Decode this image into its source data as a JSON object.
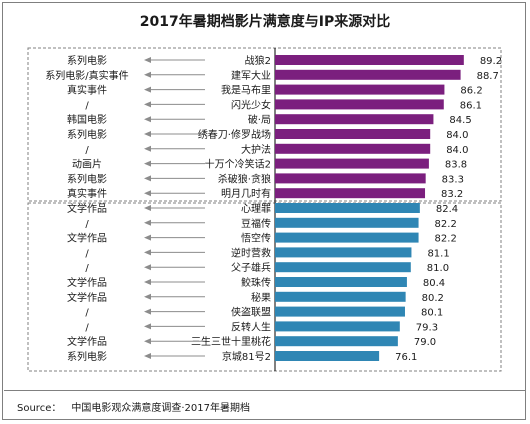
{
  "chart_data": {
    "type": "bar",
    "title": "2017年暑期档影片满意度与IP来源对比",
    "categories": [
      "战狼2",
      "建军大业",
      "我是马布里",
      "闪光少女",
      "破·局",
      "绣春刀·修罗战场",
      "大护法",
      "十万个冷笑话2",
      "杀破狼·贪狼",
      "明月几时有",
      "心理罪",
      "豆福传",
      "悟空传",
      "逆时营救",
      "父子雄兵",
      "鲛珠传",
      "秘果",
      "侠盗联盟",
      "反转人生",
      "三生三世十里桃花",
      "京城81号2"
    ],
    "values": [
      89.2,
      88.7,
      86.2,
      86.1,
      84.5,
      84.0,
      84.0,
      83.8,
      83.3,
      83.2,
      82.4,
      82.2,
      82.2,
      81.1,
      81.0,
      80.4,
      80.2,
      80.1,
      79.3,
      79.0,
      76.1
    ],
    "value_labels": [
      "89.2",
      "88.7",
      "86.2",
      "86.1",
      "84.5",
      "84.0",
      "84.0",
      "83.8",
      "83.3",
      "83.2",
      "82.4",
      "82.2",
      "82.2",
      "81.1",
      "81.0",
      "80.4",
      "80.2",
      "80.1",
      "79.3",
      "79.0",
      "76.1"
    ],
    "ip_sources": [
      "系列电影",
      "系列电影/真实事件",
      "真实事件",
      "/",
      "韩国电影",
      "系列电影",
      "/",
      "动画片",
      "系列电影",
      "真实事件",
      "文学作品",
      "/",
      "文学作品",
      "/",
      "/",
      "文学作品",
      "文学作品",
      "/",
      "/",
      "文学作品",
      "系列电影"
    ],
    "groups": [
      {
        "start": 0,
        "end": 9,
        "color": "#7b1f7e"
      },
      {
        "start": 10,
        "end": 20,
        "color": "#2f86b4"
      }
    ],
    "xlim": [
      60,
      90
    ],
    "grid": false,
    "legend": "none"
  },
  "source": {
    "label": "Source：",
    "text": "中国电影观众满意度调查·2017年暑期档"
  }
}
